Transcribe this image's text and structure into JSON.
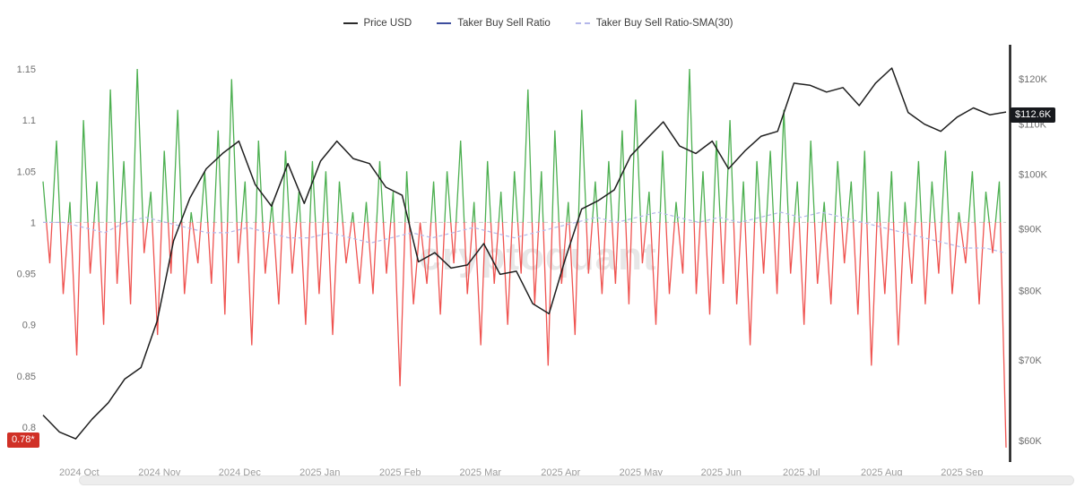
{
  "legend": {
    "items": [
      {
        "label": "Price USD",
        "color": "#2b2b2b",
        "style": "solid"
      },
      {
        "label": "Taker Buy Sell Ratio",
        "color": "#3d4e9e",
        "style": "solid"
      },
      {
        "label": "Taker Buy Sell Ratio-SMA(30)",
        "color": "#b4b7ea",
        "style": "dashed"
      }
    ]
  },
  "badges": {
    "ratio_current": "0.78*",
    "price_current": "$112.6K"
  },
  "watermark": "cryptoquant",
  "chart_data": {
    "type": "line",
    "x_tick_labels": [
      "2024 Oct",
      "2024 Nov",
      "2024 Dec",
      "2025 Jan",
      "2025 Feb",
      "2025 Mar",
      "2025 Apr",
      "2025 May",
      "2025 Jun",
      "2025 Jul",
      "2025 Aug",
      "2025 Sep"
    ],
    "left_axis": {
      "name": "Taker Buy Sell Ratio",
      "tick_labels": [
        "1.15",
        "1.1",
        "1.05",
        "1",
        "0.95",
        "0.9",
        "0.85",
        "0.8"
      ],
      "range": [
        0.78,
        1.17
      ],
      "scale": "linear"
    },
    "right_axis": {
      "name": "Price USD",
      "tick_labels": [
        "$120K",
        "$110K",
        "$100K",
        "$90K",
        "$80K",
        "$70K",
        "$60K"
      ],
      "range_k": [
        60,
        125
      ],
      "scale": "log"
    },
    "baseline": {
      "value": 1,
      "color": "#cccccc",
      "style": "dashed"
    },
    "current": {
      "taker_buy_sell_ratio": 0.78,
      "price_usd_k": 112.6
    },
    "series": [
      {
        "name": "Price USD",
        "axis": "right",
        "color": "#1f1f1f",
        "units": "USD thousands",
        "values": [
          63.0,
          61.0,
          60.2,
          62.5,
          64.5,
          67.5,
          69.0,
          75.5,
          88.0,
          95.5,
          101.0,
          104.0,
          106.5,
          98.0,
          94.0,
          102.0,
          94.5,
          102.5,
          106.5,
          103.0,
          102.0,
          97.5,
          96.0,
          84.5,
          86.0,
          83.5,
          84.0,
          87.5,
          82.5,
          83.0,
          78.0,
          76.5,
          85.0,
          93.5,
          95.0,
          97.0,
          103.5,
          107.0,
          110.5,
          105.5,
          104.0,
          106.5,
          101.0,
          104.5,
          107.5,
          108.5,
          119.0,
          118.5,
          117.0,
          118.0,
          114.0,
          119.0,
          122.5,
          112.5,
          110.0,
          108.5,
          111.5,
          113.5,
          112.0,
          112.6
        ]
      },
      {
        "name": "Taker Buy Sell Ratio",
        "axis": "left",
        "color_above_1": "#4caf50",
        "color_below_1": "#ef5350",
        "values": [
          1.04,
          0.96,
          1.08,
          0.93,
          1.02,
          0.87,
          1.1,
          0.95,
          1.04,
          0.9,
          1.13,
          0.94,
          1.06,
          0.92,
          1.15,
          0.97,
          1.03,
          0.89,
          1.07,
          0.95,
          1.11,
          0.93,
          1.01,
          0.96,
          1.05,
          0.94,
          1.09,
          0.91,
          1.14,
          0.96,
          1.04,
          0.88,
          1.08,
          0.95,
          1.02,
          0.92,
          1.07,
          0.95,
          1.03,
          0.9,
          1.06,
          0.93,
          1.05,
          0.89,
          1.04,
          0.96,
          1.01,
          0.94,
          1.02,
          0.93,
          1.06,
          0.95,
          1.03,
          0.84,
          1.05,
          0.92,
          1.0,
          0.94,
          1.04,
          0.91,
          1.05,
          0.96,
          1.08,
          0.93,
          1.02,
          0.88,
          1.06,
          0.94,
          1.03,
          0.9,
          1.05,
          0.95,
          1.13,
          0.92,
          1.05,
          0.86,
          1.09,
          0.94,
          1.02,
          0.89,
          1.11,
          0.95,
          1.04,
          0.93,
          1.06,
          0.94,
          1.09,
          0.92,
          1.12,
          0.96,
          1.03,
          0.9,
          1.07,
          0.93,
          1.02,
          0.95,
          1.15,
          0.93,
          1.05,
          0.91,
          1.08,
          0.94,
          1.1,
          0.92,
          1.04,
          0.88,
          1.06,
          0.95,
          1.07,
          0.93,
          1.11,
          0.95,
          1.04,
          0.9,
          1.08,
          0.94,
          1.02,
          0.92,
          1.06,
          0.96,
          1.04,
          0.91,
          1.07,
          0.86,
          1.03,
          0.93,
          1.05,
          0.88,
          1.02,
          0.94,
          1.06,
          0.92,
          1.04,
          0.95,
          1.07,
          0.93,
          1.01,
          0.96,
          1.05,
          0.92,
          1.03,
          0.97,
          1.04,
          0.78
        ]
      },
      {
        "name": "Taker Buy Sell Ratio-SMA(30)",
        "axis": "left",
        "color": "#b4b7ea",
        "dashed": true,
        "values": [
          1.0,
          1.0,
          0.995,
          0.99,
          1.0,
          1.005,
          1.0,
          0.995,
          0.99,
          0.99,
          0.995,
          0.99,
          0.985,
          0.985,
          0.99,
          0.985,
          0.98,
          0.985,
          0.99,
          0.985,
          0.99,
          0.995,
          0.99,
          0.985,
          0.99,
          0.995,
          1.0,
          1.005,
          1.0,
          1.005,
          1.01,
          1.005,
          1.0,
          1.005,
          1.0,
          1.005,
          1.01,
          1.005,
          1.01,
          1.005,
          1.0,
          0.995,
          0.99,
          0.985,
          0.98,
          0.975,
          0.975,
          0.97
        ]
      }
    ]
  }
}
